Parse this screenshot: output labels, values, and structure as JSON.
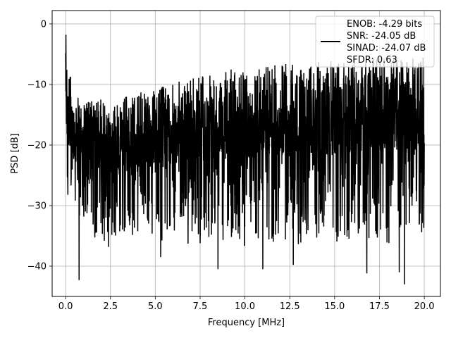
{
  "chart_data": {
    "type": "line",
    "title": "",
    "xlabel": "Frequency [MHz]",
    "ylabel": "PSD [dB]",
    "xlim": [
      -0.75,
      20.9
    ],
    "ylim": [
      -45.0,
      2.2
    ],
    "xticks": [
      0.0,
      2.5,
      5.0,
      7.5,
      10.0,
      12.5,
      15.0,
      17.5,
      20.0
    ],
    "xtick_labels": [
      "0.0",
      "2.5",
      "5.0",
      "7.5",
      "10.0",
      "12.5",
      "15.0",
      "17.5",
      "20.0"
    ],
    "yticks": [
      0,
      -10,
      -20,
      -30,
      -40
    ],
    "ytick_labels": [
      "0",
      "−10",
      "−20",
      "−30",
      "−40"
    ],
    "grid": true,
    "legend_position": "upper right",
    "legend_entries": [
      "ENOB: -4.29 bits",
      "SNR: -24.05 dB",
      "SINAD: -24.07 dB",
      "SFDR: 0.63"
    ],
    "series": [
      {
        "name": "ENOB: -4.29 bits",
        "color": "#000000",
        "x_range": [
          0.0,
          20.0
        ],
        "envelope_x": [
          0.0,
          0.1,
          0.5,
          2.5,
          5.0,
          7.5,
          10.0,
          12.5,
          15.0,
          17.5,
          20.0
        ],
        "envelope_upper": [
          -2.0,
          -6.0,
          -12.0,
          -12.5,
          -10.5,
          -8.5,
          -7.0,
          -6.5,
          -6.0,
          -5.5,
          -5.5
        ],
        "envelope_lower": [
          -17.0,
          -30.0,
          -33.0,
          -34.5,
          -34.0,
          -34.0,
          -34.5,
          -34.5,
          -34.5,
          -34.5,
          -33.0
        ],
        "notable_points": [
          {
            "x": 0.02,
            "y": -1.8
          },
          {
            "x": 0.05,
            "y": -16.5
          },
          {
            "x": 0.75,
            "y": -42.3
          },
          {
            "x": 5.3,
            "y": -38.5
          },
          {
            "x": 8.5,
            "y": -40.5
          },
          {
            "x": 11.0,
            "y": -40.5
          },
          {
            "x": 12.7,
            "y": -39.8
          },
          {
            "x": 16.8,
            "y": -41.2
          },
          {
            "x": 18.6,
            "y": -41.0
          },
          {
            "x": 18.9,
            "y": -43.0
          },
          {
            "x": 19.9,
            "y": -25.0
          }
        ]
      }
    ]
  }
}
